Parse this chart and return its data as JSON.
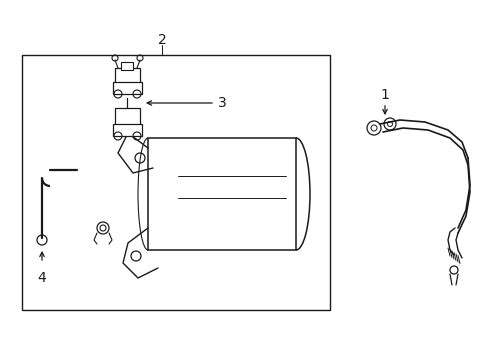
{
  "bg_color": "#ffffff",
  "line_color": "#1a1a1a",
  "label_1": "1",
  "label_2": "2",
  "label_3": "3",
  "label_4": "4",
  "label_fontsize": 10,
  "fig_width": 4.89,
  "fig_height": 3.6
}
